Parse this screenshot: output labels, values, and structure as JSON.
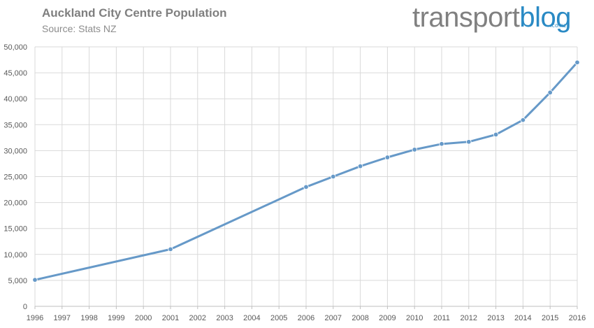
{
  "header": {
    "title": "Auckland City Centre Population",
    "subtitle": "Source: Stats NZ"
  },
  "logo": {
    "part1": "transport",
    "part2": "blog",
    "suffix": ".co.nz"
  },
  "colors": {
    "series": "#6699c8",
    "grid": "#d9d9d9",
    "logo_blue": "#2a8ac4",
    "logo_gray": "#808080"
  },
  "chart_data": {
    "type": "line",
    "title": "Auckland City Centre Population",
    "subtitle": "Source: Stats NZ",
    "xlabel": "",
    "ylabel": "",
    "categories": [
      "1996",
      "1997",
      "1998",
      "1999",
      "2000",
      "2001",
      "2002",
      "2003",
      "2004",
      "2005",
      "2006",
      "2007",
      "2008",
      "2009",
      "2010",
      "2011",
      "2012",
      "2013",
      "2014",
      "2015",
      "2016"
    ],
    "y_ticks": [
      "0",
      "5,000",
      "10,000",
      "15,000",
      "20,000",
      "25,000",
      "30,000",
      "35,000",
      "40,000",
      "45,000",
      "50,000"
    ],
    "ylim": [
      0,
      50000
    ],
    "grid": true,
    "legend": "none",
    "series": [
      {
        "name": "Auckland City Centre Population",
        "points": [
          {
            "x": "1996",
            "y": 5100
          },
          {
            "x": "2001",
            "y": 11000
          },
          {
            "x": "2006",
            "y": 23000
          },
          {
            "x": "2007",
            "y": 25000
          },
          {
            "x": "2008",
            "y": 27000
          },
          {
            "x": "2009",
            "y": 28700
          },
          {
            "x": "2010",
            "y": 30200
          },
          {
            "x": "2011",
            "y": 31300
          },
          {
            "x": "2012",
            "y": 31700
          },
          {
            "x": "2013",
            "y": 33100
          },
          {
            "x": "2014",
            "y": 35900
          },
          {
            "x": "2015",
            "y": 41200
          },
          {
            "x": "2016",
            "y": 47000
          }
        ]
      }
    ]
  }
}
